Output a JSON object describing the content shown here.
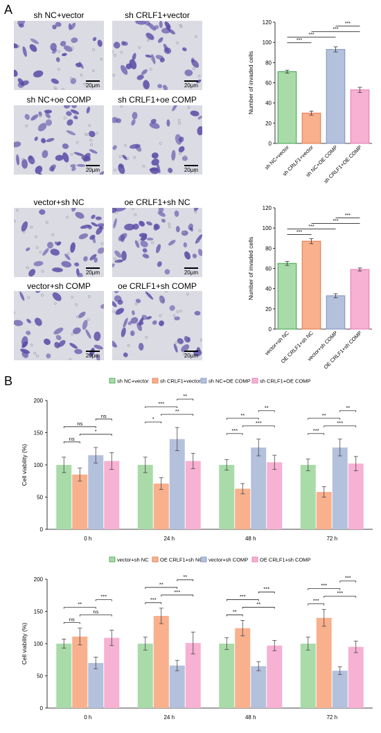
{
  "panels": {
    "a_label": "A",
    "b_label": "B"
  },
  "micrographs": {
    "group1": [
      {
        "caption": "sh NC+vector",
        "scale": "20μm"
      },
      {
        "caption": "sh CRLF1+vector",
        "scale": "20μm"
      },
      {
        "caption": "sh NC+oe COMP",
        "scale": "20μm"
      },
      {
        "caption": "sh CRLF1+oe COMP",
        "scale": "20μm"
      }
    ],
    "group2": [
      {
        "caption": "vector+sh NC",
        "scale": "20μm"
      },
      {
        "caption": "oe CRLF1+sh NC",
        "scale": "20μm"
      },
      {
        "caption": "vector+sh COMP",
        "scale": "20μm"
      },
      {
        "caption": "oe CRLF1+sh COMP",
        "scale": "20μm"
      }
    ]
  },
  "colors": {
    "green_fill": "#a9dba9",
    "green_edge": "#3aa348",
    "orange_fill": "#f9b08d",
    "orange_edge": "#e0764a",
    "blue_fill": "#b4c1dd",
    "blue_edge": "#7f90bf",
    "pink_fill": "#f7b1d3",
    "pink_edge": "#e276b1",
    "cell_stain": "#5a4aa6",
    "micrograph_bg": "#dadbe3"
  },
  "chart_data": [
    {
      "type": "bar",
      "ylabel": "Number of invaded cells",
      "ylim": [
        0,
        120
      ],
      "yticks": [
        0,
        20,
        40,
        60,
        80,
        100,
        120
      ],
      "categories": [
        "sh NC+vector",
        "sh CRLF1+vector",
        "sh NC+OE COMP",
        "sh CRLF1+OE COMP"
      ],
      "values": [
        71,
        30,
        93,
        53
      ],
      "errors": [
        1.5,
        2,
        2.5,
        2.5
      ],
      "significance": [
        {
          "between": [
            0,
            1
          ],
          "label": "***"
        },
        {
          "between": [
            0,
            2
          ],
          "label": "***"
        },
        {
          "between": [
            1,
            3
          ],
          "label": "***"
        },
        {
          "between": [
            2,
            3
          ],
          "label": "***"
        }
      ],
      "grid": false
    },
    {
      "type": "bar",
      "ylabel": "Number of invaded cells",
      "ylim": [
        0,
        120
      ],
      "yticks": [
        0,
        20,
        40,
        60,
        80,
        100,
        120
      ],
      "categories": [
        "vector+sh NC",
        "OE CRLF1+sh NC",
        "vector+sh COMP",
        "OE CRLF1+sh COMP"
      ],
      "values": [
        65,
        87,
        33,
        59
      ],
      "errors": [
        2,
        2.5,
        2,
        1.5
      ],
      "significance": [
        {
          "between": [
            0,
            1
          ],
          "label": "***"
        },
        {
          "between": [
            0,
            2
          ],
          "label": "***"
        },
        {
          "between": [
            1,
            3
          ],
          "label": "***"
        },
        {
          "between": [
            2,
            3
          ],
          "label": "***"
        }
      ],
      "grid": false
    },
    {
      "type": "bar",
      "ylabel": "Cell viability (%)",
      "ylim": [
        0,
        200
      ],
      "yticks": [
        0,
        50,
        100,
        150,
        200
      ],
      "categories": [
        "0 h",
        "24 h",
        "48 h",
        "72 h"
      ],
      "legend_position": "top",
      "series": [
        {
          "name": "sh NC+vector",
          "values": [
            100,
            100,
            100,
            100
          ],
          "errors": [
            12,
            12,
            8,
            9
          ]
        },
        {
          "name": "sh CRLF1+vector",
          "values": [
            85,
            71,
            63,
            58
          ],
          "errors": [
            10,
            9,
            8,
            8
          ]
        },
        {
          "name": "sh NC+OE COMP",
          "values": [
            115,
            140,
            127,
            127
          ],
          "errors": [
            12,
            18,
            13,
            13
          ]
        },
        {
          "name": "sh CRLF1+OE COMP",
          "values": [
            106,
            106,
            104,
            102
          ],
          "errors": [
            13,
            12,
            11,
            11
          ]
        }
      ],
      "significance": [
        [
          {
            "between": [
              0,
              1
            ],
            "label": "ns"
          },
          {
            "between": [
              0,
              2
            ],
            "label": "ns"
          },
          {
            "between": [
              1,
              3
            ],
            "label": "*"
          },
          {
            "between": [
              2,
              3
            ],
            "label": "ns"
          }
        ],
        [
          {
            "between": [
              0,
              1
            ],
            "label": "*"
          },
          {
            "between": [
              0,
              2
            ],
            "label": "***"
          },
          {
            "between": [
              1,
              3
            ],
            "label": "**"
          },
          {
            "between": [
              2,
              3
            ],
            "label": "**"
          }
        ],
        [
          {
            "between": [
              0,
              1
            ],
            "label": "***"
          },
          {
            "between": [
              0,
              2
            ],
            "label": "**"
          },
          {
            "between": [
              1,
              3
            ],
            "label": "***"
          },
          {
            "between": [
              2,
              3
            ],
            "label": "**"
          }
        ],
        [
          {
            "between": [
              0,
              1
            ],
            "label": "***"
          },
          {
            "between": [
              0,
              2
            ],
            "label": "**"
          },
          {
            "between": [
              1,
              3
            ],
            "label": "***"
          },
          {
            "between": [
              2,
              3
            ],
            "label": "**"
          }
        ]
      ],
      "grid": false
    },
    {
      "type": "bar",
      "ylabel": "Cell viability (%)",
      "ylim": [
        0,
        200
      ],
      "yticks": [
        0,
        50,
        100,
        150,
        200
      ],
      "categories": [
        "0 h",
        "24 h",
        "48 h",
        "72 h"
      ],
      "legend_position": "top",
      "series": [
        {
          "name": "vector+sh NC",
          "values": [
            100,
            100,
            100,
            100
          ],
          "errors": [
            7,
            10,
            9,
            10
          ]
        },
        {
          "name": "OE CRLF1+sh NC",
          "values": [
            111,
            143,
            124,
            140
          ],
          "errors": [
            13,
            12,
            12,
            13
          ]
        },
        {
          "name": "vector+sh COMP",
          "values": [
            70,
            66,
            65,
            58
          ],
          "errors": [
            9,
            8,
            7,
            6
          ]
        },
        {
          "name": "OE CRLF1+sh COMP",
          "values": [
            109,
            101,
            97,
            95
          ],
          "errors": [
            12,
            17,
            8,
            9
          ]
        }
      ],
      "significance": [
        [
          {
            "between": [
              0,
              1
            ],
            "label": "ns"
          },
          {
            "between": [
              0,
              2
            ],
            "label": "**"
          },
          {
            "between": [
              1,
              3
            ],
            "label": "ns"
          },
          {
            "between": [
              2,
              3
            ],
            "label": "***"
          }
        ],
        [
          {
            "between": [
              0,
              1
            ],
            "label": "***"
          },
          {
            "between": [
              0,
              2
            ],
            "label": "**"
          },
          {
            "between": [
              1,
              3
            ],
            "label": "***"
          },
          {
            "between": [
              2,
              3
            ],
            "label": "**"
          }
        ],
        [
          {
            "between": [
              0,
              1
            ],
            "label": "**"
          },
          {
            "between": [
              0,
              2
            ],
            "label": "***"
          },
          {
            "between": [
              1,
              3
            ],
            "label": "**"
          },
          {
            "between": [
              2,
              3
            ],
            "label": "***"
          }
        ],
        [
          {
            "between": [
              0,
              1
            ],
            "label": "***"
          },
          {
            "between": [
              0,
              2
            ],
            "label": "***"
          },
          {
            "between": [
              1,
              3
            ],
            "label": "***"
          },
          {
            "between": [
              2,
              3
            ],
            "label": "***"
          }
        ]
      ],
      "grid": false
    }
  ]
}
